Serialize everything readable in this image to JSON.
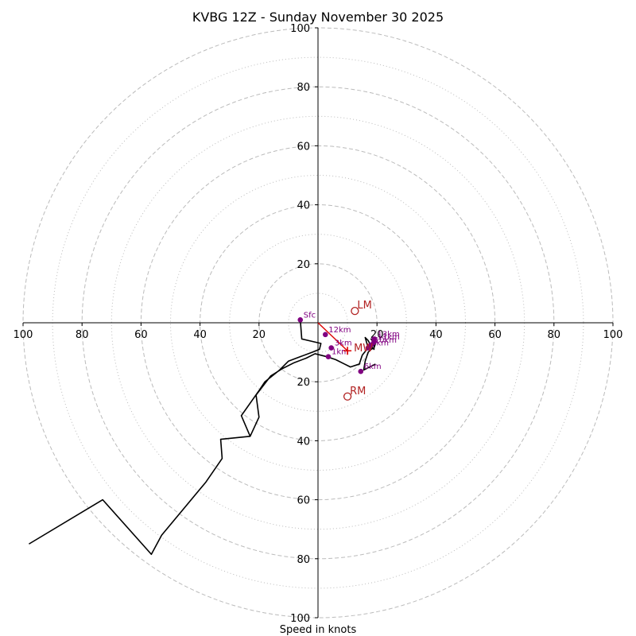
{
  "chart_data": {
    "type": "hodograph",
    "title": "KVBG 12Z - Sunday November 30 2025",
    "xlabel": "Speed in knots",
    "range": [
      -100,
      100
    ],
    "ring_major": [
      20,
      40,
      60,
      80,
      100
    ],
    "ring_minor": [
      10,
      30,
      50,
      70,
      90
    ],
    "axis_ticks": {
      "left": [
        "100",
        "80",
        "60",
        "40",
        "20"
      ],
      "right": [
        "20",
        "40",
        "60",
        "80",
        "100"
      ],
      "top": [
        "20",
        "40",
        "60",
        "80",
        "100"
      ],
      "bottom": [
        "20",
        "40",
        "60",
        "80",
        "100"
      ]
    },
    "colors": {
      "trace": "#000000",
      "height_marker": "#800080",
      "storm_motion": "#b22222",
      "mean_wind": "#dd0000",
      "grid": "#bbbbbb"
    },
    "trace": [
      [
        -6,
        1
      ],
      [
        -5.5,
        -5.5
      ],
      [
        1,
        -7
      ],
      [
        0.5,
        -9
      ],
      [
        -2,
        -10
      ],
      [
        -6,
        -11.5
      ],
      [
        -10,
        -13
      ],
      [
        -13,
        -16
      ],
      [
        -18,
        -20
      ],
      [
        -20,
        -23
      ],
      [
        -26,
        -31.5
      ],
      [
        -23,
        -38.5
      ],
      [
        -20,
        -32
      ],
      [
        -21,
        -24.5
      ],
      [
        -16,
        -18
      ],
      [
        -12,
        -15.5
      ],
      [
        -8,
        -13.5
      ],
      [
        -4,
        -12
      ],
      [
        -1,
        -10.5
      ],
      [
        3,
        -11.5
      ],
      [
        6,
        -12.5
      ],
      [
        9,
        -14
      ],
      [
        11,
        -15
      ],
      [
        14,
        -14
      ],
      [
        15,
        -11
      ],
      [
        17,
        -8.5
      ],
      [
        16,
        -5
      ],
      [
        17,
        -6
      ],
      [
        18,
        -8
      ],
      [
        19,
        -9
      ],
      [
        19,
        -7
      ],
      [
        18,
        -5.5
      ],
      [
        19,
        -6
      ],
      [
        19.5,
        -7
      ],
      [
        19,
        -8.5
      ],
      [
        18,
        -9
      ],
      [
        17,
        -10
      ],
      [
        16,
        -13
      ],
      [
        15.5,
        -16
      ],
      [
        19.5,
        -14
      ]
    ],
    "lower_tail": [
      [
        -23,
        -38.5
      ],
      [
        -33,
        -39.5
      ],
      [
        -32.5,
        -46
      ],
      [
        -38,
        -54
      ],
      [
        -53,
        -72
      ],
      [
        -56.5,
        -78.5
      ],
      [
        -73,
        -60
      ],
      [
        -98,
        -75
      ]
    ],
    "height_markers": [
      {
        "label": "Sfc",
        "u": -6,
        "v": 1
      },
      {
        "label": "1km",
        "u": 3.5,
        "v": -11.5
      },
      {
        "label": "3km",
        "u": 4.5,
        "v": -8.5
      },
      {
        "label": "6km",
        "u": 14.5,
        "v": -16.5
      },
      {
        "label": "9km",
        "u": 17,
        "v": -8.5
      },
      {
        "label": "10km",
        "u": 18,
        "v": -7.5
      },
      {
        "label": "11km",
        "u": 19,
        "v": -6.5
      },
      {
        "label": "12km",
        "u": 2.5,
        "v": -4
      },
      {
        "label": "13km",
        "u": 19,
        "v": -5.5
      }
    ],
    "storm_motion": {
      "left_mover": {
        "label": "LM",
        "u": 12.5,
        "v": 4
      },
      "right_mover": {
        "label": "RM",
        "u": 10,
        "v": -25
      },
      "mean_wind": {
        "label": "MW",
        "u": 10,
        "v": -9.5
      }
    },
    "srh_arrow": [
      [
        0,
        0
      ],
      [
        10,
        -9.5
      ]
    ]
  }
}
